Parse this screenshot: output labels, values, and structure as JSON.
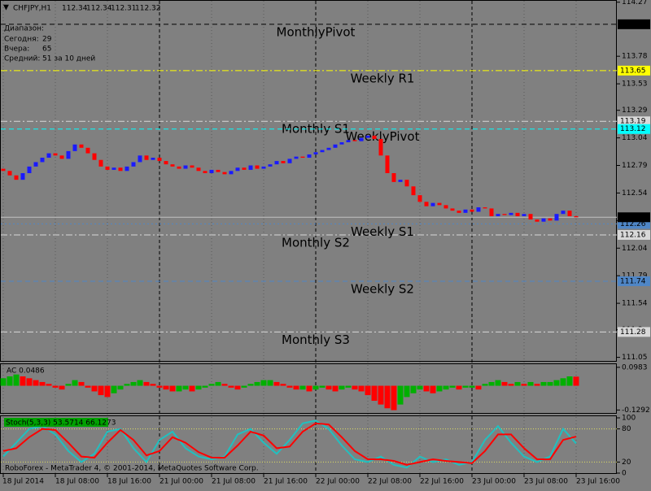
{
  "header": {
    "symbol": "CHFJPY,H1",
    "quote": [
      112.34,
      112.34,
      112.31,
      112.32
    ]
  },
  "info": {
    "title": "Диапазон:",
    "rows": [
      {
        "label": "Сегодня:",
        "value": "29"
      },
      {
        "label": "Вчера:",
        "value": "65"
      },
      {
        "label": "Средний:",
        "value": "51 за 10 дней"
      }
    ]
  },
  "price_axis": {
    "ylim": [
      111.01,
      114.29
    ],
    "ticks": [
      114.27,
      113.78,
      113.53,
      113.29,
      113.04,
      112.79,
      112.54,
      112.29,
      112.04,
      111.79,
      111.54,
      111.3,
      111.05
    ]
  },
  "current_price": 112.32,
  "monthly_levels": [
    {
      "name": "MonthlyPivot",
      "value": 114.07,
      "color": "#000000",
      "style": "dash"
    },
    {
      "name": "Monthly S1",
      "value": 113.19,
      "color": "#d8d8d8",
      "style": "dashdot"
    },
    {
      "name": "Monthly S2",
      "value": 112.16,
      "color": "#d8d8d8",
      "style": "dashdot"
    },
    {
      "name": "Monthly S3",
      "value": 111.28,
      "color": "#d8d8d8",
      "style": "dashdot"
    }
  ],
  "weekly_levels": [
    {
      "name": "Weekly R1",
      "value": 113.65,
      "color": "#ffff00",
      "style": "dashdot"
    },
    {
      "name": "WeeklyPivot",
      "value": 113.12,
      "color": "#00ffff",
      "style": "dash"
    },
    {
      "name": "Weekly S1",
      "value": 112.26,
      "color": "#4f86c6",
      "style": "dot"
    },
    {
      "name": "Weekly S2",
      "value": 111.74,
      "color": "#4f86c6",
      "style": "dash"
    }
  ],
  "candles": {
    "up_color": "#1a1aff",
    "down_color": "#ff0000",
    "first_open": 112.76,
    "closes": [
      112.74,
      112.7,
      112.66,
      112.72,
      112.78,
      112.82,
      112.86,
      112.9,
      112.88,
      112.85,
      112.92,
      112.98,
      112.95,
      112.9,
      112.84,
      112.78,
      112.75,
      112.77,
      112.74,
      112.78,
      112.82,
      112.88,
      112.84,
      112.86,
      112.83,
      112.8,
      112.78,
      112.76,
      112.79,
      112.77,
      112.74,
      112.72,
      112.75,
      112.73,
      112.71,
      112.74,
      112.77,
      112.75,
      112.79,
      112.76,
      112.78,
      112.8,
      112.83,
      112.81,
      112.85,
      112.87,
      112.86,
      112.89,
      112.91,
      112.93,
      112.95,
      112.98,
      113.0,
      113.02,
      113.01,
      113.04,
      113.06,
      113.03,
      112.88,
      112.72,
      112.64,
      112.66,
      112.6,
      112.52,
      112.46,
      112.42,
      112.45,
      112.43,
      112.4,
      112.38,
      112.36,
      112.39,
      112.37,
      112.41,
      112.4,
      112.33,
      112.35,
      112.34,
      112.36,
      112.33,
      112.35,
      112.3,
      112.28,
      112.31,
      112.29,
      112.35,
      112.38,
      112.33,
      112.32
    ]
  },
  "time_labels": [
    "18 Jul 2014",
    "18 Jul 08:00",
    "18 Jul 16:00",
    "21 Jul 00:00",
    "21 Jul 08:00",
    "21 Jul 16:00",
    "22 Jul 00:00",
    "22 Jul 08:00",
    "22 Jul 16:00",
    "23 Jul 00:00",
    "23 Jul 08:00",
    "23 Jul 16:00"
  ],
  "ac": {
    "label": "AC 0.0486",
    "ylim": [
      -0.145,
      0.115
    ],
    "ticks": [
      0.0983,
      -0.1292
    ],
    "up_color": "#00b000",
    "down_color": "#ff0000",
    "values": [
      0.04,
      0.05,
      0.06,
      0.05,
      0.04,
      0.03,
      0.02,
      0.01,
      -0.01,
      -0.02,
      0.01,
      0.03,
      0.02,
      -0.01,
      -0.03,
      -0.05,
      -0.06,
      -0.04,
      -0.02,
      0.01,
      0.02,
      0.03,
      0.02,
      0.01,
      -0.01,
      -0.02,
      -0.03,
      -0.03,
      -0.02,
      -0.03,
      -0.02,
      -0.01,
      0.01,
      0.02,
      0.01,
      -0.01,
      -0.02,
      -0.01,
      0.01,
      0.02,
      0.03,
      0.03,
      0.02,
      0.01,
      -0.01,
      -0.02,
      -0.02,
      -0.03,
      -0.02,
      -0.01,
      -0.02,
      -0.03,
      -0.02,
      -0.01,
      -0.02,
      -0.03,
      -0.05,
      -0.08,
      -0.1,
      -0.12,
      -0.13,
      -0.1,
      -0.06,
      -0.04,
      -0.02,
      -0.03,
      -0.04,
      -0.03,
      -0.02,
      -0.01,
      -0.02,
      -0.01,
      -0.01,
      -0.02,
      0.01,
      0.02,
      0.03,
      0.02,
      0.01,
      0.02,
      0.01,
      0.02,
      0.01,
      0.02,
      0.02,
      0.03,
      0.04,
      0.05,
      0.0486
    ]
  },
  "stoch": {
    "label": "Stoch(5,3,3) 53.5714 66.1273",
    "ylim": [
      0,
      100
    ],
    "ticks": [
      100,
      80,
      20,
      0
    ],
    "levels": [
      80,
      20
    ],
    "main_color": "#20c0c0",
    "signal_color": "#ff0000",
    "main": [
      30,
      55,
      80,
      85,
      70,
      40,
      20,
      35,
      75,
      80,
      45,
      20,
      60,
      75,
      45,
      30,
      25,
      30,
      70,
      80,
      55,
      35,
      60,
      90,
      95,
      80,
      50,
      25,
      20,
      30,
      15,
      10,
      30,
      20,
      25,
      15,
      20,
      60,
      85,
      55,
      30,
      20,
      30,
      80,
      53.5714
    ],
    "signal": [
      40,
      45,
      65,
      80,
      78,
      55,
      30,
      28,
      55,
      78,
      60,
      32,
      40,
      65,
      55,
      38,
      28,
      28,
      50,
      75,
      68,
      45,
      48,
      75,
      90,
      88,
      65,
      40,
      25,
      25,
      22,
      15,
      20,
      25,
      22,
      20,
      18,
      40,
      70,
      70,
      45,
      25,
      25,
      60,
      66.1273
    ]
  },
  "footer": "RoboForex - MetaTrader 4, © 2001-2014, MetaQuotes Software Corp."
}
